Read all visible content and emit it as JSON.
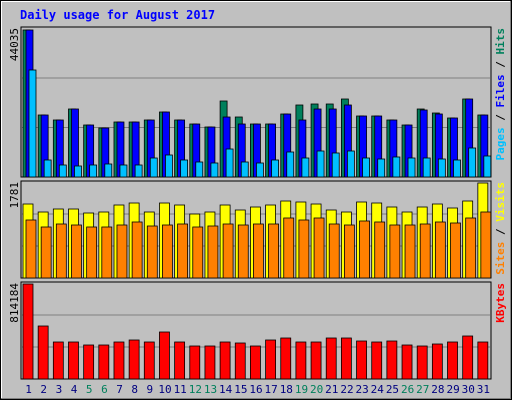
{
  "colors": {
    "background": "#c0c0c0",
    "title": "#0000ff",
    "hits": "#00805c",
    "files": "#0000ff",
    "pages": "#00c0ff",
    "visits": "#ffff00",
    "sites": "#ff8000",
    "kbytes": "#ff0000",
    "weekend_label": "#00805c",
    "weekday_label": "#000080",
    "separator": "#808080"
  },
  "chart_data": {
    "type": "bar",
    "title": "Daily usage for August 2017",
    "categories": [
      "1",
      "2",
      "3",
      "4",
      "5",
      "6",
      "7",
      "8",
      "9",
      "10",
      "11",
      "12",
      "13",
      "14",
      "15",
      "16",
      "17",
      "18",
      "19",
      "20",
      "21",
      "22",
      "23",
      "24",
      "25",
      "26",
      "27",
      "28",
      "29",
      "30",
      "31"
    ],
    "weekend_days": [
      "5",
      "6",
      "12",
      "13",
      "19",
      "20",
      "26",
      "27"
    ],
    "panels": [
      {
        "name": "top",
        "max_label": "44035",
        "ylim": [
          0,
          44035
        ],
        "legend": [
          "Pages",
          "Files",
          "Hits"
        ],
        "series": [
          {
            "name": "Hits",
            "values": [
              44035,
              18500,
              17000,
              20500,
              15500,
              14700,
              16500,
              16500,
              17000,
              19500,
              17000,
              16000,
              15000,
              22800,
              18000,
              15900,
              16000,
              19000,
              21500,
              21800,
              22000,
              23300,
              18300,
              18300,
              17200,
              15600,
              20300,
              19300,
              17800,
              23300,
              18500
            ]
          },
          {
            "name": "Files",
            "values": [
              44035,
              18500,
              17000,
              20500,
              15500,
              14700,
              16500,
              16500,
              17000,
              19500,
              17000,
              16000,
              15000,
              18000,
              16000,
              15900,
              16000,
              19000,
              17000,
              20500,
              20500,
              21500,
              18300,
              18300,
              17200,
              15600,
              20000,
              19000,
              17800,
              23300,
              18500
            ]
          },
          {
            "name": "Pages",
            "values": [
              32000,
              5200,
              3700,
              3300,
              3600,
              3900,
              3700,
              3700,
              5600,
              6500,
              5100,
              4600,
              4300,
              8300,
              4600,
              4200,
              5000,
              7600,
              5800,
              7900,
              7300,
              7700,
              5600,
              5400,
              5900,
              5800,
              5800,
              5300,
              5100,
              8800,
              6200
            ]
          }
        ]
      },
      {
        "name": "middle",
        "max_label": "1781",
        "ylim": [
          0,
          1781
        ],
        "legend": [
          "Sites",
          "Visits"
        ],
        "series": [
          {
            "name": "Visits",
            "values": [
              1380,
              1230,
              1300,
              1300,
              1220,
              1230,
              1360,
              1400,
              1230,
              1400,
              1370,
              1200,
              1230,
              1370,
              1280,
              1330,
              1360,
              1440,
              1420,
              1390,
              1280,
              1230,
              1420,
              1410,
              1330,
              1230,
              1330,
              1380,
              1310,
              1450,
              1781
            ]
          },
          {
            "name": "Sites",
            "values": [
              1080,
              960,
              1010,
              990,
              950,
              960,
              1000,
              1040,
              970,
              1000,
              1010,
              950,
              980,
              1010,
              990,
              1010,
              1020,
              1120,
              1090,
              1120,
              1010,
              1000,
              1060,
              1040,
              1000,
              1000,
              1020,
              1040,
              1030,
              1130,
              1230
            ]
          }
        ]
      },
      {
        "name": "bottom",
        "max_label": "814184",
        "ylim": [
          0,
          814184
        ],
        "legend": [
          "KBytes"
        ],
        "series": [
          {
            "name": "KBytes",
            "values": [
              814184,
              450000,
              320000,
              320000,
              290000,
              290000,
              320000,
              335000,
              320000,
              400000,
              320000,
              280000,
              285000,
              320000,
              310000,
              280000,
              330000,
              355000,
              320000,
              320000,
              355000,
              355000,
              325000,
              320000,
              325000,
              290000,
              280000,
              300000,
              320000,
              370000,
              320000
            ]
          }
        ]
      }
    ]
  }
}
